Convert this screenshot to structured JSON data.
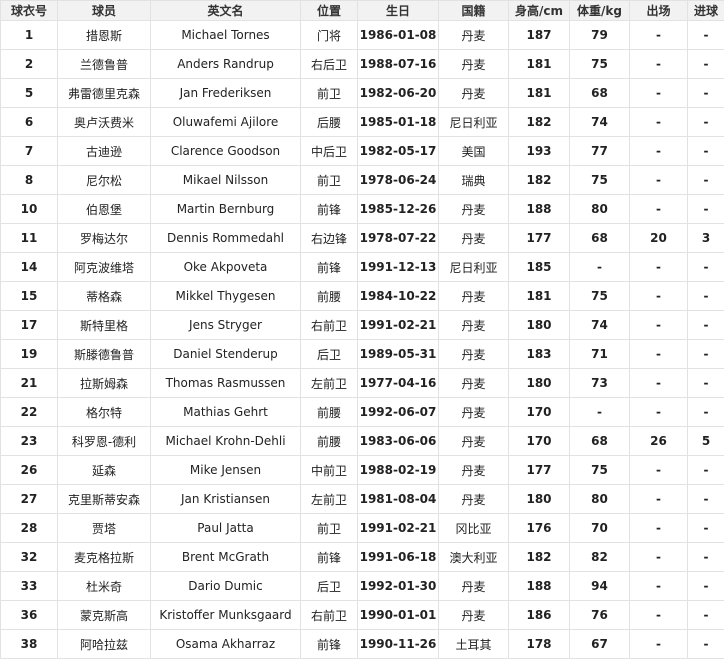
{
  "table": {
    "header": [
      "球衣号",
      "球员",
      "英文名",
      "位置",
      "生日",
      "国籍",
      "身高/cm",
      "体重/kg",
      "出场",
      "进球"
    ],
    "rows": [
      [
        "1",
        "措恩斯",
        "Michael Tornes",
        "门将",
        "1986-01-08",
        "丹麦",
        "187",
        "79",
        "-",
        "-"
      ],
      [
        "2",
        "兰德鲁普",
        "Anders Randrup",
        "右后卫",
        "1988-07-16",
        "丹麦",
        "181",
        "75",
        "-",
        "-"
      ],
      [
        "5",
        "弗雷德里克森",
        "Jan Frederiksen",
        "前卫",
        "1982-06-20",
        "丹麦",
        "181",
        "68",
        "-",
        "-"
      ],
      [
        "6",
        "奥卢沃费米",
        "Oluwafemi Ajilore",
        "后腰",
        "1985-01-18",
        "尼日利亚",
        "182",
        "74",
        "-",
        "-"
      ],
      [
        "7",
        "古迪逊",
        "Clarence Goodson",
        "中后卫",
        "1982-05-17",
        "美国",
        "193",
        "77",
        "-",
        "-"
      ],
      [
        "8",
        "尼尔松",
        "Mikael Nilsson",
        "前卫",
        "1978-06-24",
        "瑞典",
        "182",
        "75",
        "-",
        "-"
      ],
      [
        "10",
        "伯恩堡",
        "Martin Bernburg",
        "前锋",
        "1985-12-26",
        "丹麦",
        "188",
        "80",
        "-",
        "-"
      ],
      [
        "11",
        "罗梅达尔",
        "Dennis Rommedahl",
        "右边锋",
        "1978-07-22",
        "丹麦",
        "177",
        "68",
        "20",
        "3"
      ],
      [
        "14",
        "阿克波维塔",
        "Oke Akpoveta",
        "前锋",
        "1991-12-13",
        "尼日利亚",
        "185",
        "-",
        "-",
        "-"
      ],
      [
        "15",
        "蒂格森",
        "Mikkel Thygesen",
        "前腰",
        "1984-10-22",
        "丹麦",
        "181",
        "75",
        "-",
        "-"
      ],
      [
        "17",
        "斯特里格",
        "Jens Stryger",
        "右前卫",
        "1991-02-21",
        "丹麦",
        "180",
        "74",
        "-",
        "-"
      ],
      [
        "19",
        "斯滕德鲁普",
        "Daniel Stenderup",
        "后卫",
        "1989-05-31",
        "丹麦",
        "183",
        "71",
        "-",
        "-"
      ],
      [
        "21",
        "拉斯姆森",
        "Thomas Rasmussen",
        "左前卫",
        "1977-04-16",
        "丹麦",
        "180",
        "73",
        "-",
        "-"
      ],
      [
        "22",
        "格尔特",
        "Mathias Gehrt",
        "前腰",
        "1992-06-07",
        "丹麦",
        "170",
        "-",
        "-",
        "-"
      ],
      [
        "23",
        "科罗恩-德利",
        "Michael Krohn-Dehli",
        "前腰",
        "1983-06-06",
        "丹麦",
        "170",
        "68",
        "26",
        "5"
      ],
      [
        "26",
        "延森",
        "Mike Jensen",
        "中前卫",
        "1988-02-19",
        "丹麦",
        "177",
        "75",
        "-",
        "-"
      ],
      [
        "27",
        "克里斯蒂安森",
        "Jan Kristiansen",
        "左前卫",
        "1981-08-04",
        "丹麦",
        "180",
        "80",
        "-",
        "-"
      ],
      [
        "28",
        "贾塔",
        "Paul Jatta",
        "前卫",
        "1991-02-21",
        "冈比亚",
        "176",
        "70",
        "-",
        "-"
      ],
      [
        "32",
        "麦克格拉斯",
        "Brent McGrath",
        "前锋",
        "1991-06-18",
        "澳大利亚",
        "182",
        "82",
        "-",
        "-"
      ],
      [
        "33",
        "杜米奇",
        "Dario Dumic",
        "后卫",
        "1992-01-30",
        "丹麦",
        "188",
        "94",
        "-",
        "-"
      ],
      [
        "36",
        "蒙克斯高",
        "Kristoffer Munksgaard",
        "右前卫",
        "1990-01-01",
        "丹麦",
        "186",
        "76",
        "-",
        "-"
      ],
      [
        "38",
        "阿哈拉兹",
        "Osama Akharraz",
        "前锋",
        "1990-11-26",
        "土耳其",
        "178",
        "67",
        "-",
        "-"
      ]
    ]
  }
}
